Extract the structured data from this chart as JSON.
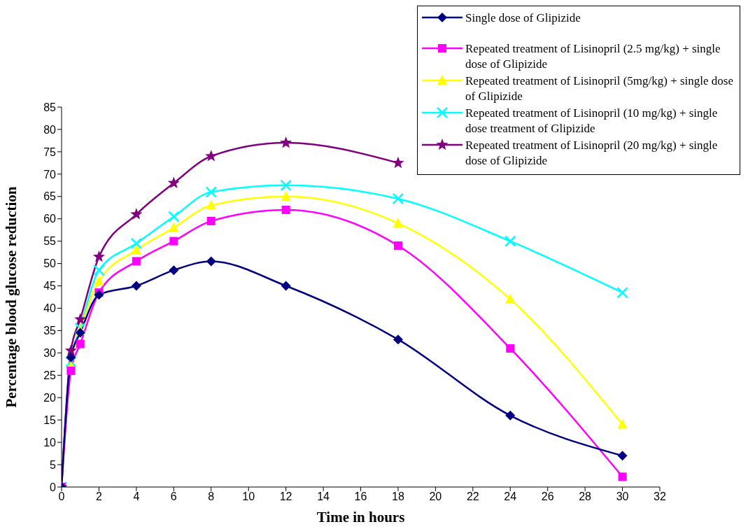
{
  "chart_data": {
    "type": "line",
    "xlabel": "Time in hours",
    "ylabel": "Percentage blood glucose reduction",
    "x": [
      0,
      0.5,
      1,
      2,
      4,
      6,
      8,
      12,
      18,
      24,
      30
    ],
    "xlim": [
      0,
      32
    ],
    "xticks": [
      0,
      2,
      4,
      6,
      8,
      10,
      12,
      14,
      16,
      18,
      20,
      22,
      24,
      26,
      28,
      30,
      32
    ],
    "ylim": [
      0,
      85
    ],
    "yticks": [
      0,
      5,
      10,
      15,
      20,
      25,
      30,
      35,
      40,
      45,
      50,
      55,
      60,
      65,
      70,
      75,
      80,
      85
    ],
    "grid": false,
    "legend": "top right",
    "line_style": "solid",
    "series": [
      {
        "name": "Single dose of Glipizide",
        "color": "#000080",
        "marker": "diamond",
        "values": [
          0,
          29,
          34.5,
          43,
          45,
          48.5,
          50.5,
          45,
          33,
          16,
          7
        ]
      },
      {
        "name": "Repeated treatment of Lisinopril (2.5 mg/kg) + single dose of Glipizide",
        "color": "#ff00ff",
        "marker": "square",
        "values": [
          0,
          26,
          32,
          43.5,
          50.5,
          55,
          59.5,
          62,
          54,
          31,
          2.3
        ]
      },
      {
        "name": "Repeated treatment of Lisinopril (5mg/kg) + single dose of Glipizide",
        "color": "#ffff00",
        "marker": "triangle",
        "values": [
          0,
          27,
          35,
          46,
          53,
          58,
          63,
          65,
          59,
          42,
          14
        ]
      },
      {
        "name": "Repeated treatment of Lisinopril (10 mg/kg) + single dose treatment of Glipizide",
        "color": "#00ffff",
        "marker": "cross",
        "values": [
          0,
          28,
          35.5,
          48.5,
          54.5,
          60.5,
          66,
          67.5,
          64.5,
          55,
          43.5
        ]
      },
      {
        "name": "Repeated treatment of Lisinopril (20 mg/kg) + single dose of Glipizide",
        "color": "#800080",
        "marker": "star",
        "values": [
          0,
          30.5,
          37.5,
          51.5,
          61,
          68,
          74,
          77,
          72.5,
          null,
          null
        ]
      }
    ]
  }
}
